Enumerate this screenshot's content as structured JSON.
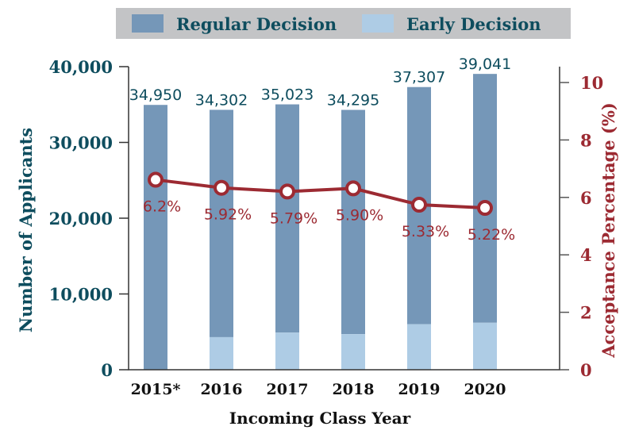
{
  "chart_data": {
    "type": "bar+line",
    "categories": [
      "2015*",
      "2016",
      "2017",
      "2018",
      "2019",
      "2020"
    ],
    "series": [
      {
        "name": "Regular Decision",
        "type": "stacked-bar",
        "axis": "left",
        "color": "#7597b8",
        "values": [
          34950,
          30002,
          30123,
          29595,
          31307,
          32841
        ]
      },
      {
        "name": "Early Decision",
        "type": "stacked-bar",
        "axis": "left",
        "color": "#aecce5",
        "values": [
          0,
          4300,
          4900,
          4700,
          6000,
          6200
        ]
      },
      {
        "type": "line",
        "axis": "right",
        "color": "#9c2a32",
        "values": [
          6.2,
          5.92,
          5.79,
          5.9,
          5.33,
          5.22
        ],
        "labels": [
          "6.2%",
          "5.92%",
          "5.79%",
          "5.90%",
          "5.33%",
          "5.22%"
        ]
      }
    ],
    "totals": [
      34950,
      34302,
      35023,
      34295,
      37307,
      39041
    ],
    "total_labels": [
      "34,950",
      "34,302",
      "35,023",
      "34,295",
      "37,307",
      "39,041"
    ],
    "xlabel": "Incoming Class Year",
    "ylabel": "Number of Applicants",
    "y2label": "Acceptance Percentage (%)",
    "ylim": [
      0,
      40000
    ],
    "y2lim": [
      0,
      10
    ],
    "yticks": [
      "0",
      "10,000",
      "20,000",
      "30,000",
      "40,000"
    ],
    "y2ticks": [
      "0",
      "2",
      "4",
      "6",
      "8",
      "10"
    ],
    "grid": false,
    "legend": "top",
    "legend_entries": [
      "Regular Decision",
      "Early Decision"
    ],
    "colors": {
      "axis_left": "#0e4d5e",
      "axis_right": "#9c2a32",
      "legend_bg": "#c3c4c6",
      "label_text": "#0e4d5e"
    }
  }
}
